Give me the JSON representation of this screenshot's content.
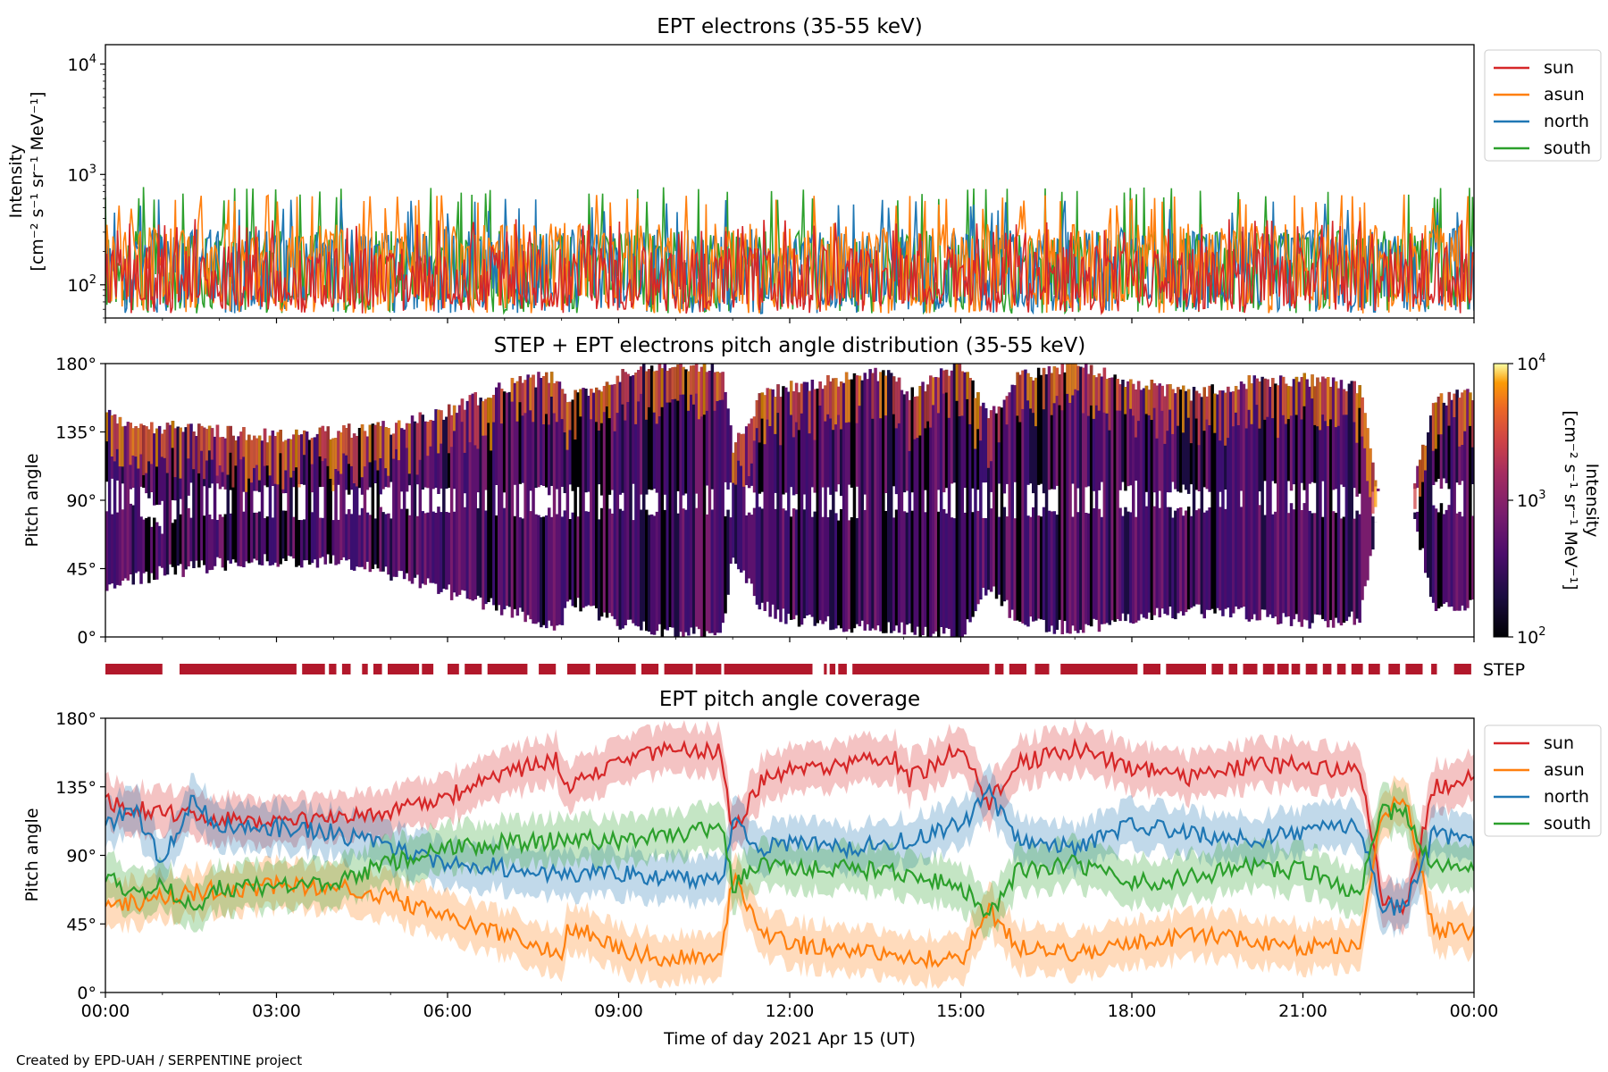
{
  "credit": "Created by EPD-UAH / SERPENTINE project",
  "colors": {
    "sun": "#d62728",
    "asun": "#ff7f0e",
    "north": "#1f77b4",
    "south": "#2ca02c",
    "step_bar": "#b2182b"
  },
  "time_axis": {
    "label": "Time of day 2021 Apr 15 (UT)",
    "ticks": [
      "00:00",
      "03:00",
      "06:00",
      "09:00",
      "12:00",
      "15:00",
      "18:00",
      "21:00",
      "00:00"
    ],
    "range_hours": [
      0,
      24
    ]
  },
  "chart_data": [
    {
      "type": "line",
      "title": "EPT electrons (35-55 keV)",
      "ylabel_line1": "Intensity",
      "ylabel_line2": "[cm⁻² s⁻¹ sr⁻¹ MeV⁻¹]",
      "yscale": "log",
      "ylim": [
        50,
        15000
      ],
      "ytick_values": [
        100,
        1000,
        10000
      ],
      "ytick_bases": [
        "10",
        "10",
        "10"
      ],
      "ytick_exps": [
        "2",
        "3",
        "4"
      ],
      "legend_position": "right-top",
      "series": [
        {
          "name": "sun",
          "color": "#d62728",
          "typical": 160,
          "noise_range": [
            55,
            360
          ]
        },
        {
          "name": "asun",
          "color": "#ff7f0e",
          "typical": 260,
          "noise_range": [
            55,
            600
          ]
        },
        {
          "name": "north",
          "color": "#1f77b4",
          "typical": 230,
          "noise_range": [
            55,
            550
          ]
        },
        {
          "name": "south",
          "color": "#2ca02c",
          "typical": 220,
          "noise_range": [
            55,
            700
          ]
        }
      ]
    },
    {
      "type": "heatmap",
      "title": "STEP + EPT electrons pitch angle distribution (35-55 keV)",
      "ylabel": "Pitch angle",
      "ylim": [
        0,
        180
      ],
      "yticks": [
        "0°",
        "45°",
        "90°",
        "135°",
        "180°"
      ],
      "colorbar": {
        "label_line1": "Intensity",
        "label_line2": "[cm⁻² s⁻¹ sr⁻¹ MeV⁻¹]",
        "scale": "log",
        "range": [
          100,
          10000
        ],
        "tick_bases": [
          "10",
          "10",
          "10"
        ],
        "tick_exps": [
          "2",
          "3",
          "4"
        ]
      }
    },
    {
      "type": "timeline",
      "label": "STEP",
      "segments_hours": [
        [
          0.0,
          1.0
        ],
        [
          1.3,
          3.35
        ],
        [
          3.45,
          3.85
        ],
        [
          3.92,
          4.05
        ],
        [
          4.15,
          4.3
        ],
        [
          4.5,
          4.6
        ],
        [
          4.7,
          4.85
        ],
        [
          4.95,
          5.5
        ],
        [
          5.55,
          5.75
        ],
        [
          6.0,
          6.2
        ],
        [
          6.3,
          6.6
        ],
        [
          6.7,
          7.4
        ],
        [
          7.6,
          7.9
        ],
        [
          8.1,
          8.5
        ],
        [
          8.6,
          9.3
        ],
        [
          9.4,
          9.7
        ],
        [
          9.8,
          10.3
        ],
        [
          10.35,
          10.8
        ],
        [
          10.85,
          12.4
        ],
        [
          12.6,
          12.65
        ],
        [
          12.7,
          12.8
        ],
        [
          12.85,
          13.0
        ],
        [
          13.1,
          15.5
        ],
        [
          15.6,
          15.75
        ],
        [
          15.85,
          16.15
        ],
        [
          16.3,
          16.55
        ],
        [
          16.75,
          18.1
        ],
        [
          18.2,
          18.5
        ],
        [
          18.6,
          19.3
        ],
        [
          19.4,
          19.6
        ],
        [
          19.7,
          19.85
        ],
        [
          19.95,
          20.2
        ],
        [
          20.3,
          20.5
        ],
        [
          20.55,
          20.75
        ],
        [
          20.8,
          20.95
        ],
        [
          21.05,
          21.25
        ],
        [
          21.35,
          21.5
        ],
        [
          21.6,
          21.75
        ],
        [
          21.85,
          22.05
        ],
        [
          22.15,
          22.35
        ],
        [
          22.5,
          22.7
        ],
        [
          22.8,
          23.1
        ],
        [
          23.25,
          23.35
        ],
        [
          23.65,
          23.95
        ]
      ]
    },
    {
      "type": "line",
      "title": "EPT pitch angle coverage",
      "ylabel": "Pitch angle",
      "ylim": [
        0,
        180
      ],
      "yticks": [
        "0°",
        "45°",
        "90°",
        "135°",
        "180°"
      ],
      "legend_position": "right-top",
      "band_halfwidth_deg": 15,
      "series": [
        {
          "name": "sun",
          "color": "#d62728",
          "x_hours": [
            0,
            1,
            2,
            3,
            4,
            5,
            6,
            7,
            7.9,
            8.1,
            9,
            10,
            10.8,
            11.0,
            11.5,
            12,
            13,
            13.8,
            14.1,
            15,
            15.5,
            16,
            17,
            18,
            19,
            20,
            21,
            22,
            22.4,
            22.8,
            23.3,
            24
          ],
          "y_deg": [
            125,
            118,
            115,
            112,
            115,
            118,
            128,
            145,
            152,
            135,
            152,
            160,
            158,
            105,
            138,
            145,
            150,
            155,
            140,
            160,
            125,
            150,
            160,
            148,
            140,
            148,
            150,
            145,
            60,
            55,
            135,
            140
          ]
        },
        {
          "name": "asun",
          "color": "#ff7f0e",
          "x_hours": [
            0,
            1,
            2,
            3,
            4,
            5,
            6,
            7,
            8,
            8.1,
            9,
            10,
            10.8,
            11.0,
            11.5,
            12,
            13,
            14,
            15,
            15.5,
            16,
            17,
            18,
            19,
            20,
            21,
            22,
            22.4,
            22.8,
            23.3,
            24
          ],
          "y_deg": [
            55,
            62,
            68,
            70,
            70,
            62,
            50,
            38,
            25,
            45,
            28,
            22,
            22,
            75,
            40,
            32,
            28,
            25,
            20,
            55,
            30,
            25,
            32,
            38,
            35,
            30,
            32,
            120,
            125,
            40,
            40
          ]
        },
        {
          "name": "north",
          "color": "#1f77b4",
          "x_hours": [
            0,
            0.5,
            1,
            1.5,
            2,
            3,
            4,
            5,
            6,
            7,
            8,
            9,
            10,
            10.8,
            11.0,
            11.5,
            12,
            13,
            14,
            15,
            15.5,
            16,
            17,
            18,
            19,
            20,
            21,
            22,
            22.4,
            22.8,
            23.3,
            24
          ],
          "y_deg": [
            110,
            120,
            85,
            125,
            110,
            108,
            105,
            95,
            85,
            82,
            78,
            78,
            75,
            72,
            110,
            95,
            98,
            95,
            100,
            110,
            130,
            100,
            95,
            110,
            105,
            100,
            105,
            110,
            55,
            58,
            105,
            100
          ]
        },
        {
          "name": "south",
          "color": "#2ca02c",
          "x_hours": [
            0,
            0.5,
            1,
            1.5,
            2,
            3,
            4,
            5,
            6,
            7,
            8,
            9,
            10,
            10.8,
            11.0,
            11.5,
            12,
            13,
            14,
            15,
            15.5,
            16,
            17,
            18,
            19,
            20,
            21,
            22,
            22.4,
            22.8,
            23.3,
            24
          ],
          "y_deg": [
            75,
            65,
            72,
            55,
            68,
            70,
            72,
            85,
            95,
            98,
            100,
            100,
            102,
            110,
            70,
            85,
            80,
            82,
            78,
            70,
            50,
            80,
            85,
            72,
            75,
            82,
            80,
            65,
            120,
            118,
            82,
            80
          ]
        }
      ]
    }
  ]
}
